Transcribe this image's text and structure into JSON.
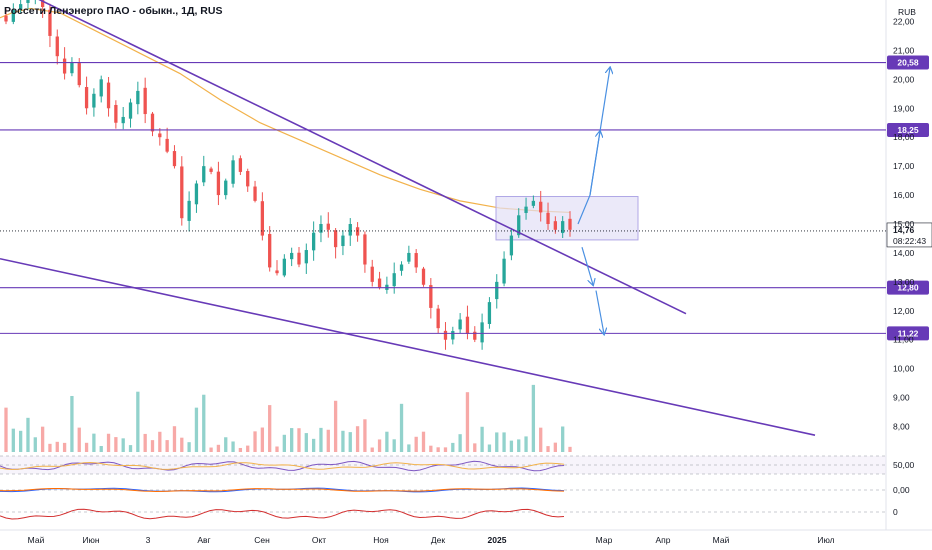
{
  "chart_data": {
    "type": "candlestick",
    "title": "Россети Ленэнерго ПАО - обыкн., 1Д, RUS",
    "currency": "RUB",
    "y_ticks": [
      "22,00",
      "21,00",
      "20,00",
      "19,00",
      "18,00",
      "17,00",
      "16,00",
      "15,00",
      "14,00",
      "13,00",
      "12,00",
      "11,00",
      "10,00",
      "9,00",
      "8,00"
    ],
    "x_ticks": [
      "Май",
      "Июн",
      "3",
      "Авг",
      "Сен",
      "Окт",
      "Ноя",
      "Дек",
      "2025",
      "Мар",
      "Апр",
      "Май",
      "Июл"
    ],
    "ylim": [
      7.5,
      22.5
    ],
    "current_price": "14,76",
    "current_time": "08:22:43",
    "levels": [
      {
        "label": "20,58",
        "value": 20.58
      },
      {
        "label": "18,25",
        "value": 18.25
      },
      {
        "label": "12,80",
        "value": 12.8
      },
      {
        "label": "11,22",
        "value": 11.22
      }
    ],
    "close_series": [
      22.0,
      22.4,
      22.6,
      22.8,
      22.9,
      22.5,
      21.5,
      20.8,
      20.2,
      20.6,
      19.8,
      19.0,
      19.5,
      20.0,
      19.0,
      18.5,
      18.7,
      19.2,
      19.6,
      18.8,
      18.2,
      18.0,
      17.5,
      17.0,
      15.2,
      15.8,
      16.4,
      17.0,
      16.8,
      16.0,
      16.5,
      17.2,
      16.8,
      16.3,
      15.8,
      14.6,
      13.5,
      13.3,
      13.8,
      14.0,
      13.6,
      14.1,
      14.7,
      15.0,
      14.8,
      14.2,
      14.6,
      15.0,
      14.6,
      13.6,
      13.0,
      12.8,
      12.9,
      13.3,
      13.6,
      14.0,
      13.5,
      12.9,
      12.1,
      11.4,
      11.0,
      11.3,
      11.7,
      11.2,
      11.0,
      11.6,
      12.3,
      13.0,
      13.8,
      14.6,
      15.3,
      15.6,
      15.8,
      15.4,
      15.0,
      14.8,
      15.1,
      14.8
    ],
    "ma_line": [
      [
        -2,
        22.1
      ],
      [
        12,
        22.3
      ],
      [
        30,
        22.45
      ],
      [
        60,
        22.3
      ],
      [
        100,
        21.6
      ],
      [
        140,
        20.9
      ],
      [
        180,
        20.2
      ],
      [
        220,
        19.3
      ],
      [
        260,
        18.5
      ],
      [
        300,
        17.9
      ],
      [
        340,
        17.3
      ],
      [
        380,
        16.7
      ],
      [
        420,
        16.2
      ],
      [
        460,
        15.8
      ],
      [
        500,
        15.55
      ],
      [
        540,
        15.45
      ],
      [
        570,
        15.4
      ]
    ],
    "trendlines": [
      {
        "from": [
          -5,
          23.5
        ],
        "to": [
          686,
          11.9
        ]
      },
      {
        "from": [
          0,
          13.8
        ],
        "to": [
          815,
          7.7
        ]
      }
    ],
    "projection_box": {
      "x": [
        496,
        638
      ],
      "y": [
        14.45,
        15.95
      ]
    },
    "projections": [
      [
        [
          578,
          15.0
        ],
        [
          590,
          16.0
        ],
        [
          600,
          18.2
        ]
      ],
      [
        [
          590,
          16.0
        ],
        [
          610,
          20.4
        ]
      ],
      [
        [
          582,
          14.2
        ],
        [
          593,
          12.9
        ]
      ],
      [
        [
          596,
          12.7
        ],
        [
          604,
          11.2
        ]
      ]
    ],
    "oscillator_labels": [
      "50,00",
      "0,00",
      "0"
    ]
  },
  "colors": {
    "up": "#26a69a",
    "down": "#ef5350",
    "trendline": "#673ab7",
    "level_tag": "#673ab7",
    "ma": "#f2b24b",
    "projection": "#4a90e2",
    "box_fill": "#e3e0f6"
  }
}
